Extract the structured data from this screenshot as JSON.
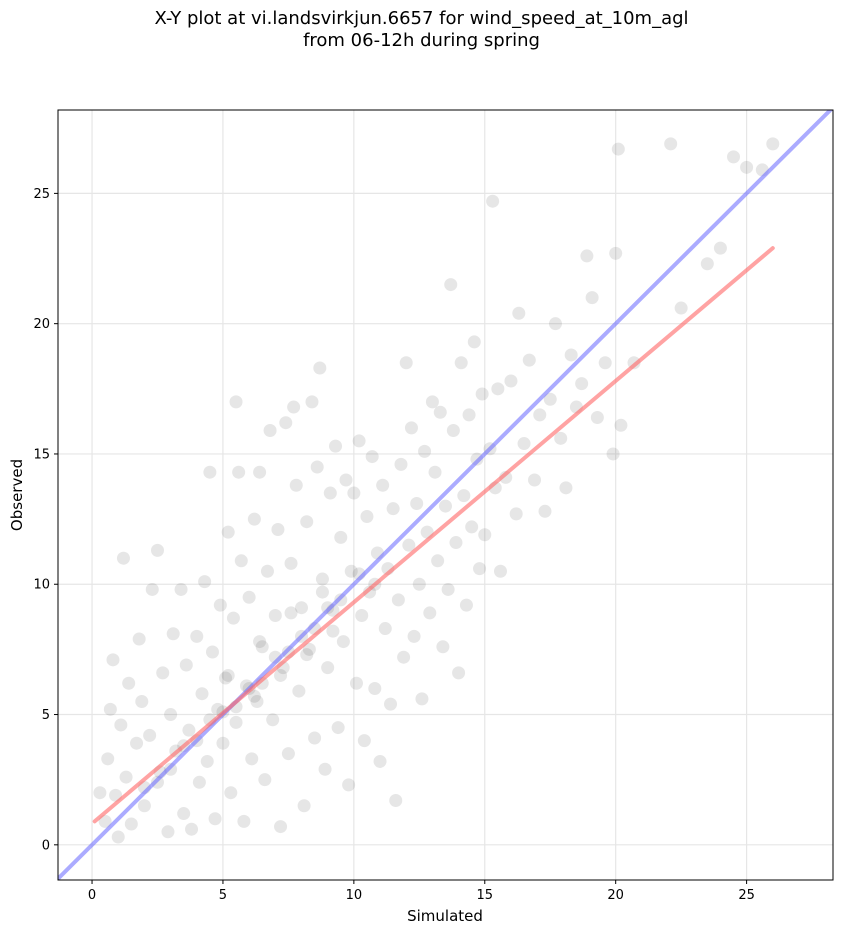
{
  "chart_data": {
    "type": "scatter",
    "title_lines": [
      "X-Y plot at vi.landsvirkjun.6657 for wind_speed_at_10m_agl",
      "from 06-12h during spring"
    ],
    "xlabel": "Simulated",
    "ylabel": "Observed",
    "xlim": [
      -1.3,
      28.3
    ],
    "ylim": [
      -1.35,
      28.2
    ],
    "xticks": [
      0,
      5,
      10,
      15,
      20,
      25
    ],
    "yticks": [
      0,
      5,
      10,
      15,
      20,
      25
    ],
    "grid": true,
    "point_color": "#555555",
    "point_opacity": 0.15,
    "one_to_one_line": {
      "color": "#6666ff",
      "x": [
        -1.3,
        28.3
      ],
      "y": [
        -1.3,
        28.3
      ]
    },
    "fit_line": {
      "color": "#ff6666",
      "x": [
        0.1,
        26.0
      ],
      "y": [
        0.9,
        22.9
      ]
    },
    "series": [
      {
        "values": [
          [
            0.3,
            2.0
          ],
          [
            0.5,
            0.9
          ],
          [
            0.6,
            3.3
          ],
          [
            0.7,
            5.2
          ],
          [
            0.8,
            7.1
          ],
          [
            0.9,
            1.9
          ],
          [
            1.0,
            0.3
          ],
          [
            1.1,
            4.6
          ],
          [
            1.2,
            11.0
          ],
          [
            1.3,
            2.6
          ],
          [
            1.4,
            6.2
          ],
          [
            1.5,
            0.8
          ],
          [
            1.7,
            3.9
          ],
          [
            1.8,
            7.9
          ],
          [
            1.9,
            5.5
          ],
          [
            2.0,
            1.5
          ],
          [
            2.2,
            4.2
          ],
          [
            2.3,
            9.8
          ],
          [
            2.5,
            11.3
          ],
          [
            2.6,
            2.8
          ],
          [
            2.7,
            6.6
          ],
          [
            2.9,
            0.5
          ],
          [
            3.0,
            5.0
          ],
          [
            3.1,
            8.1
          ],
          [
            3.2,
            3.6
          ],
          [
            3.4,
            9.8
          ],
          [
            3.5,
            1.2
          ],
          [
            3.6,
            6.9
          ],
          [
            3.7,
            4.4
          ],
          [
            3.8,
            0.6
          ],
          [
            4.0,
            8.0
          ],
          [
            4.1,
            2.4
          ],
          [
            4.2,
            5.8
          ],
          [
            4.3,
            10.1
          ],
          [
            4.4,
            3.2
          ],
          [
            4.5,
            14.3
          ],
          [
            4.6,
            7.4
          ],
          [
            4.7,
            1.0
          ],
          [
            4.8,
            5.2
          ],
          [
            4.9,
            9.2
          ],
          [
            5.0,
            3.9
          ],
          [
            5.1,
            6.4
          ],
          [
            5.2,
            12.0
          ],
          [
            5.3,
            2.0
          ],
          [
            5.4,
            8.7
          ],
          [
            5.5,
            17.0
          ],
          [
            5.5,
            4.7
          ],
          [
            5.6,
            14.3
          ],
          [
            5.7,
            10.9
          ],
          [
            5.8,
            0.9
          ],
          [
            5.9,
            6.1
          ],
          [
            6.0,
            9.5
          ],
          [
            6.1,
            3.3
          ],
          [
            6.2,
            12.5
          ],
          [
            6.3,
            5.5
          ],
          [
            6.4,
            14.3
          ],
          [
            6.5,
            7.6
          ],
          [
            6.6,
            2.5
          ],
          [
            6.7,
            10.5
          ],
          [
            6.8,
            15.9
          ],
          [
            6.9,
            4.8
          ],
          [
            7.0,
            8.8
          ],
          [
            7.1,
            12.1
          ],
          [
            7.2,
            0.7
          ],
          [
            7.3,
            6.8
          ],
          [
            7.4,
            16.2
          ],
          [
            7.5,
            3.5
          ],
          [
            7.6,
            10.8
          ],
          [
            7.7,
            16.8
          ],
          [
            7.8,
            13.8
          ],
          [
            7.9,
            5.9
          ],
          [
            8.0,
            9.1
          ],
          [
            8.1,
            1.5
          ],
          [
            8.2,
            12.4
          ],
          [
            8.3,
            7.5
          ],
          [
            8.4,
            17.0
          ],
          [
            8.5,
            4.1
          ],
          [
            8.6,
            14.5
          ],
          [
            8.7,
            18.3
          ],
          [
            8.8,
            10.2
          ],
          [
            8.9,
            2.9
          ],
          [
            9.0,
            6.8
          ],
          [
            9.1,
            13.5
          ],
          [
            9.2,
            9.0
          ],
          [
            9.3,
            15.3
          ],
          [
            9.4,
            4.5
          ],
          [
            9.5,
            11.8
          ],
          [
            9.6,
            7.8
          ],
          [
            9.7,
            14.0
          ],
          [
            9.8,
            2.3
          ],
          [
            9.9,
            10.5
          ],
          [
            10.0,
            13.5
          ],
          [
            10.1,
            6.2
          ],
          [
            10.2,
            15.5
          ],
          [
            10.3,
            8.8
          ],
          [
            10.4,
            4.0
          ],
          [
            10.5,
            12.6
          ],
          [
            10.6,
            9.7
          ],
          [
            10.7,
            14.9
          ],
          [
            10.8,
            6.0
          ],
          [
            10.9,
            11.2
          ],
          [
            11.0,
            3.2
          ],
          [
            11.1,
            13.8
          ],
          [
            11.2,
            8.3
          ],
          [
            11.3,
            10.6
          ],
          [
            11.4,
            5.4
          ],
          [
            11.5,
            12.9
          ],
          [
            11.6,
            1.7
          ],
          [
            11.7,
            9.4
          ],
          [
            11.8,
            14.6
          ],
          [
            11.9,
            7.2
          ],
          [
            12.0,
            18.5
          ],
          [
            12.1,
            11.5
          ],
          [
            12.2,
            16.0
          ],
          [
            12.3,
            8.0
          ],
          [
            12.4,
            13.1
          ],
          [
            12.5,
            10.0
          ],
          [
            12.6,
            5.6
          ],
          [
            12.7,
            15.1
          ],
          [
            12.8,
            12.0
          ],
          [
            12.9,
            8.9
          ],
          [
            13.0,
            17.0
          ],
          [
            13.1,
            14.3
          ],
          [
            13.2,
            10.9
          ],
          [
            13.3,
            16.6
          ],
          [
            13.4,
            7.6
          ],
          [
            13.5,
            13.0
          ],
          [
            13.6,
            9.8
          ],
          [
            13.7,
            21.5
          ],
          [
            13.8,
            15.9
          ],
          [
            13.9,
            11.6
          ],
          [
            14.0,
            6.6
          ],
          [
            14.1,
            18.5
          ],
          [
            14.2,
            13.4
          ],
          [
            14.3,
            9.2
          ],
          [
            14.4,
            16.5
          ],
          [
            14.5,
            12.2
          ],
          [
            14.6,
            19.3
          ],
          [
            14.7,
            14.8
          ],
          [
            14.8,
            10.6
          ],
          [
            14.9,
            17.3
          ],
          [
            15.0,
            11.9
          ],
          [
            15.2,
            15.2
          ],
          [
            15.3,
            24.7
          ],
          [
            15.4,
            13.7
          ],
          [
            15.5,
            17.5
          ],
          [
            15.6,
            10.5
          ],
          [
            15.8,
            14.1
          ],
          [
            16.0,
            17.8
          ],
          [
            16.2,
            12.7
          ],
          [
            16.3,
            20.4
          ],
          [
            16.5,
            15.4
          ],
          [
            16.7,
            18.6
          ],
          [
            16.9,
            14.0
          ],
          [
            17.1,
            16.5
          ],
          [
            17.3,
            12.8
          ],
          [
            17.5,
            17.1
          ],
          [
            17.7,
            20.0
          ],
          [
            17.9,
            15.6
          ],
          [
            18.1,
            13.7
          ],
          [
            18.3,
            18.8
          ],
          [
            18.5,
            16.8
          ],
          [
            18.7,
            17.7
          ],
          [
            18.9,
            22.6
          ],
          [
            19.1,
            21.0
          ],
          [
            19.3,
            16.4
          ],
          [
            19.6,
            18.5
          ],
          [
            19.9,
            15.0
          ],
          [
            20.0,
            22.7
          ],
          [
            20.1,
            26.7
          ],
          [
            20.2,
            16.1
          ],
          [
            20.7,
            18.5
          ],
          [
            22.1,
            26.9
          ],
          [
            22.5,
            20.6
          ],
          [
            23.5,
            22.3
          ],
          [
            24.0,
            22.9
          ],
          [
            24.5,
            26.4
          ],
          [
            25.0,
            26.0
          ],
          [
            25.6,
            25.9
          ],
          [
            26.0,
            26.9
          ],
          [
            4.0,
            4.0
          ],
          [
            4.5,
            4.8
          ],
          [
            5.0,
            5.1
          ],
          [
            5.5,
            5.3
          ],
          [
            6.0,
            6.0
          ],
          [
            6.5,
            6.2
          ],
          [
            7.0,
            7.2
          ],
          [
            7.5,
            7.4
          ],
          [
            8.0,
            8.0
          ],
          [
            8.5,
            8.3
          ],
          [
            9.0,
            9.1
          ],
          [
            9.5,
            9.4
          ],
          [
            3.5,
            3.8
          ],
          [
            3.0,
            2.9
          ],
          [
            2.5,
            2.4
          ],
          [
            2.0,
            2.2
          ],
          [
            6.2,
            5.7
          ],
          [
            7.2,
            6.5
          ],
          [
            8.2,
            7.3
          ],
          [
            9.2,
            8.2
          ],
          [
            5.2,
            6.5
          ],
          [
            6.4,
            7.8
          ],
          [
            7.6,
            8.9
          ],
          [
            8.8,
            9.7
          ],
          [
            10.2,
            10.4
          ],
          [
            10.8,
            10.0
          ]
        ]
      }
    ]
  }
}
